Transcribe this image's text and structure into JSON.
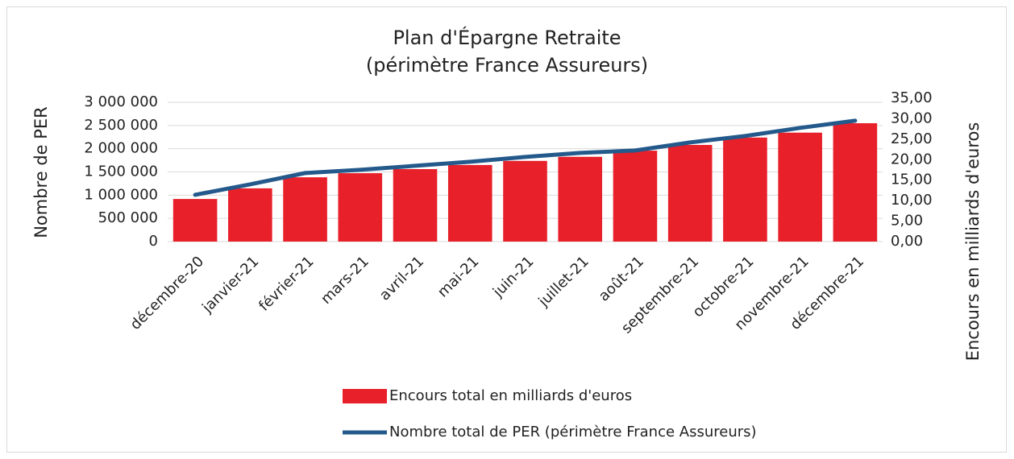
{
  "chart_data": {
    "type": "bar-line",
    "title": "Plan d'Épargne Retraite",
    "subtitle": "(périmètre France Assureurs)",
    "y_label": "Nombre de PER",
    "y2_label": "Encours en milliards d'euros",
    "categories": [
      "décembre-20",
      "janvier-21",
      "février-21",
      "mars-21",
      "avril-21",
      "mai-21",
      "juin-21",
      "juillet-21",
      "août-21",
      "septembre-21",
      "octobre-21",
      "novembre-21",
      "décembre-21"
    ],
    "series": [
      {
        "name": "Encours total en milliards d'euros",
        "type": "bar",
        "axis": "y2",
        "color": "#e8202a",
        "values": [
          10.4,
          13.0,
          15.7,
          16.7,
          17.7,
          18.7,
          19.7,
          20.7,
          22.2,
          23.6,
          25.4,
          26.6,
          28.9
        ]
      },
      {
        "name": "Nombre total de PER  (périmètre France Assureurs)",
        "type": "line",
        "color": "#24598b",
        "values": [
          1007000,
          1232000,
          1476000,
          1545000,
          1632000,
          1719000,
          1823000,
          1910000,
          1962000,
          2135000,
          2274000,
          2448000,
          2604000
        ]
      }
    ],
    "ylim": [
      0,
      3000000
    ],
    "yticks": [
      0,
      {
        "value": 500000,
        "label": "500 000"
      },
      {
        "value": 1000000,
        "label": "1 000 000"
      },
      {
        "value": 1500000,
        "label": "1 500 000"
      },
      {
        "value": 2000000,
        "label": "2 000 000"
      },
      {
        "value": 2500000,
        "label": "2 500 000"
      },
      {
        "value": 3000000,
        "label": "3 000 000"
      }
    ],
    "y2lim": [
      0,
      35
    ],
    "y2ticks": [
      {
        "value": 0,
        "label": "0,00"
      },
      {
        "value": 5,
        "label": "5,00"
      },
      {
        "value": 10,
        "label": "10,00"
      },
      {
        "value": 15,
        "label": "15,00"
      },
      {
        "value": 20,
        "label": "20,00"
      },
      {
        "value": 25,
        "label": "25,00"
      },
      {
        "value": 30,
        "label": "30,00"
      },
      {
        "value": 35,
        "label": "35,00"
      }
    ],
    "grid": true,
    "legend": "bottom"
  }
}
